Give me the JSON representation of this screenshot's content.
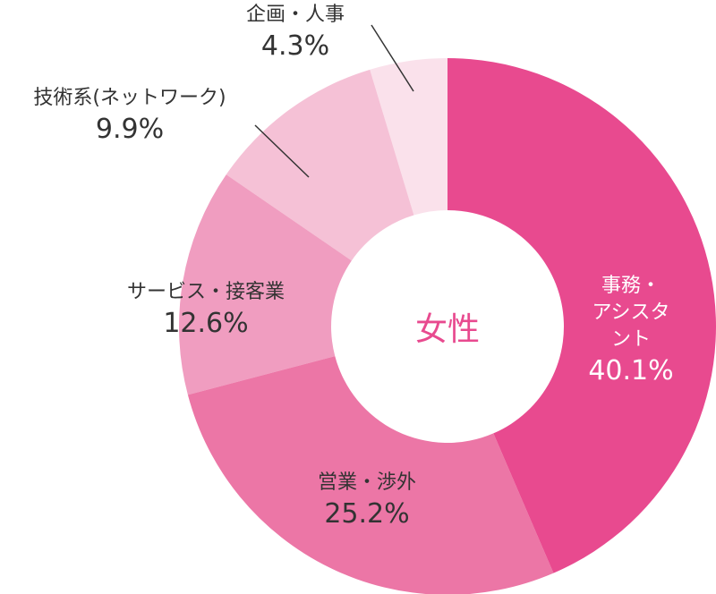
{
  "chart_data": {
    "type": "donut",
    "center_label": "女性",
    "categories": [
      "事務・\nアシスタント",
      "営業・渉外",
      "サービス・接客業",
      "技術系(ネットワーク)",
      "企画・人事"
    ],
    "values": [
      40.1,
      25.2,
      12.6,
      9.9,
      4.3
    ],
    "value_labels": [
      "40.1%",
      "25.2%",
      "12.6%",
      "9.9%",
      "4.3%"
    ],
    "colors": [
      "#e84a8f",
      "#ec76a6",
      "#f09dc0",
      "#f5c1d6",
      "#fae1eb"
    ]
  }
}
